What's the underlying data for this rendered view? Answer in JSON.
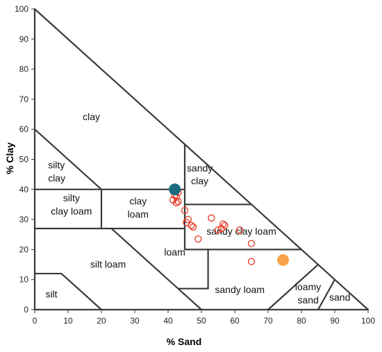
{
  "chart_data": {
    "type": "scatter",
    "xlabel": "% Sand",
    "ylabel": "% Clay",
    "xlim": [
      0,
      100
    ],
    "ylim": [
      0,
      100
    ],
    "xticks": [
      "0",
      "10",
      "20",
      "30",
      "40",
      "50",
      "60",
      "70",
      "80",
      "90",
      "100"
    ],
    "yticks": [
      "0",
      "10",
      "20",
      "30",
      "40",
      "50",
      "60",
      "70",
      "80",
      "90",
      "100"
    ],
    "regions": [
      {
        "lines": [
          "clay"
        ],
        "x": 17,
        "y": 63
      },
      {
        "lines": [
          "silty",
          "clay"
        ],
        "x": 4,
        "y": 47,
        "align": "start"
      },
      {
        "lines": [
          "sandy",
          "clay"
        ],
        "x": 49.5,
        "y": 46
      },
      {
        "lines": [
          "silty",
          "clay loam"
        ],
        "x": 11,
        "y": 36
      },
      {
        "lines": [
          "clay",
          "loam"
        ],
        "x": 31,
        "y": 35
      },
      {
        "lines": [
          "sandy clay loam"
        ],
        "x": 62,
        "y": 25
      },
      {
        "lines": [
          "loam"
        ],
        "x": 42,
        "y": 18
      },
      {
        "lines": [
          "silt loam"
        ],
        "x": 22,
        "y": 14
      },
      {
        "lines": [
          "sandy loam"
        ],
        "x": 61.5,
        "y": 5.5
      },
      {
        "lines": [
          "loamy",
          "sand"
        ],
        "x": 82,
        "y": 6.5
      },
      {
        "lines": [
          "sand"
        ],
        "x": 91.5,
        "y": 3
      },
      {
        "lines": [
          "silt"
        ],
        "x": 5,
        "y": 4
      }
    ],
    "series": [
      {
        "marker": "open-circle",
        "color": "#e8331f",
        "points": [
          [
            41.5,
            36.5
          ],
          [
            42,
            38
          ],
          [
            42.5,
            37.5
          ],
          [
            43,
            36
          ],
          [
            43,
            39
          ],
          [
            42.5,
            35.5
          ],
          [
            45,
            33
          ],
          [
            45.5,
            29
          ],
          [
            46,
            30
          ],
          [
            47,
            28
          ],
          [
            47.5,
            27.5
          ],
          [
            49,
            23.5
          ],
          [
            53,
            30.5
          ],
          [
            55,
            26.5
          ],
          [
            56,
            27
          ],
          [
            56.5,
            28.5
          ],
          [
            57,
            28
          ],
          [
            61.5,
            26.5
          ],
          [
            65,
            22
          ],
          [
            65,
            16
          ]
        ]
      },
      {
        "marker": "filled-circle",
        "color": "#1a6b80",
        "points": [
          [
            42,
            40
          ]
        ]
      },
      {
        "marker": "filled-circle",
        "color": "#f6a34a",
        "points": [
          [
            74.5,
            16.5
          ]
        ]
      }
    ]
  }
}
